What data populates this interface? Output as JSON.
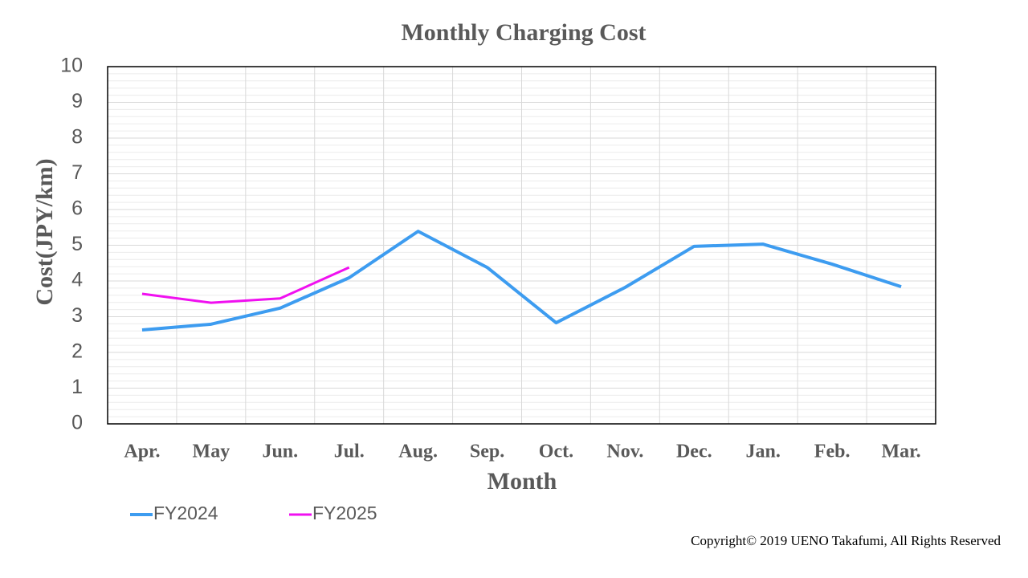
{
  "chart_data": {
    "type": "line",
    "title": "Monthly Charging Cost",
    "x_label": "Month",
    "y_label": "Cost(JPY/km)",
    "categories": [
      "Apr.",
      "May",
      "Jun.",
      "Jul.",
      "Aug.",
      "Sep.",
      "Oct.",
      "Nov.",
      "Dec.",
      "Jan.",
      "Feb.",
      "Mar."
    ],
    "series": [
      {
        "name": "FY2024",
        "color": "#3d9cf0",
        "values": [
          2.63,
          2.79,
          3.24,
          4.09,
          5.39,
          4.38,
          2.83,
          3.82,
          4.97,
          5.03,
          4.47,
          3.84
        ]
      },
      {
        "name": "FY2025",
        "color": "#f010f0",
        "values": [
          3.64,
          3.39,
          3.51,
          4.38,
          null,
          null,
          null,
          null,
          null,
          null,
          null,
          null
        ]
      }
    ],
    "ylim": [
      0,
      10
    ],
    "yticks": [
      0,
      1,
      2,
      3,
      4,
      5,
      6,
      7,
      8,
      9,
      10
    ],
    "grid": true,
    "legend": "bottom-left",
    "copyright": "Copyright© 2019 UENO Takafumi, All Rights Reserved"
  }
}
